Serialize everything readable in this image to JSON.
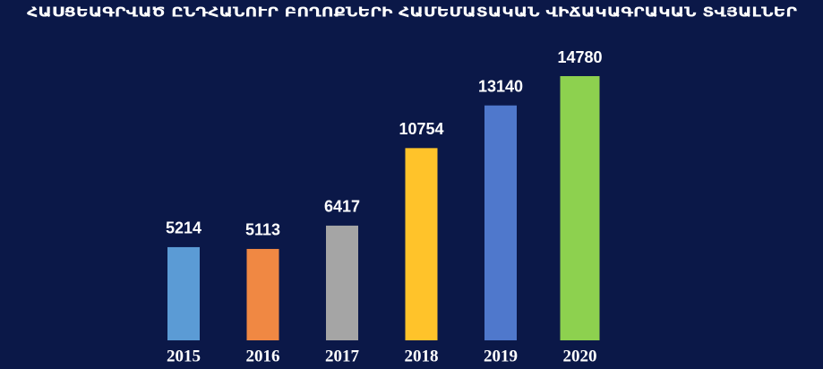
{
  "chart_data": {
    "type": "bar",
    "title": "ՀԱՍՑԵԱԳՐՎԱԾ ԸՆԴՀԱՆՈՒՐ ԲՈՂՈՔՆԵՐԻ ՀԱՄԵՄԱՏԱԿԱՆ ՎԻՃԱԿԱԳՐԱԿԱՆ ՏՎՅԱԼՆԵՐ",
    "categories": [
      "2015",
      "2016",
      "2017",
      "2018",
      "2019",
      "2020"
    ],
    "values": [
      5214,
      5113,
      6417,
      10754,
      13140,
      14780
    ],
    "colors": [
      "#5b9bd5",
      "#f08843",
      "#a5a5a5",
      "#ffc32a",
      "#4f78cc",
      "#8dd14f"
    ]
  }
}
